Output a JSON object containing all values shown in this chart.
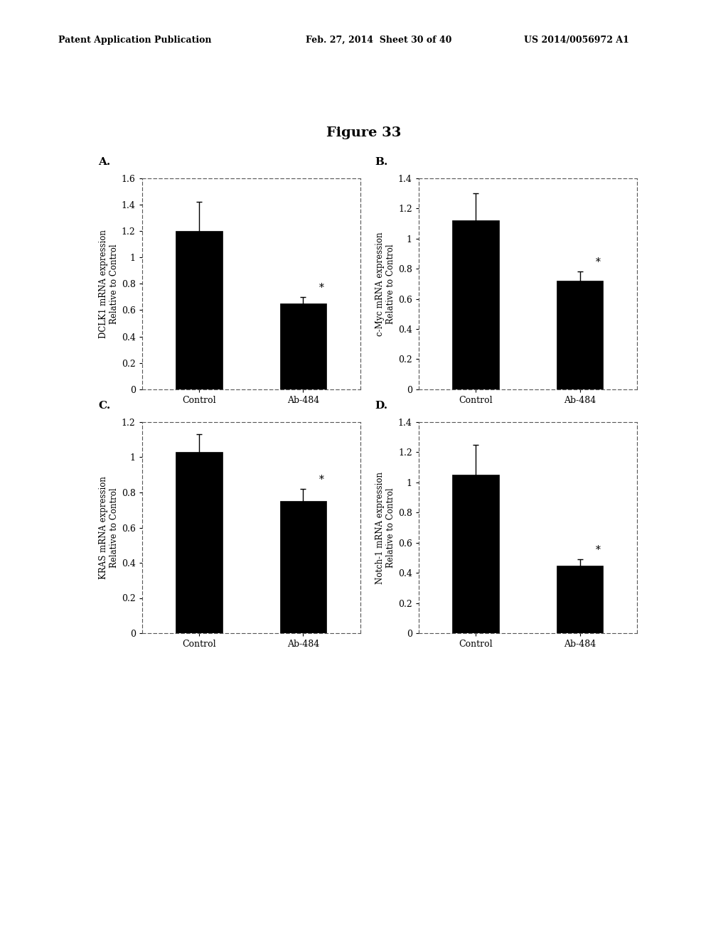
{
  "figure_title": "Figure 33",
  "header_left": "Patent Application Publication",
  "header_mid": "Feb. 27, 2014  Sheet 30 of 40",
  "header_right": "US 2014/0056972 A1",
  "panels": [
    {
      "label": "A.",
      "ylabel": "DCLK1 mRNA expression\nRelative to Control",
      "ylim": [
        0,
        1.6
      ],
      "yticks": [
        0,
        0.2,
        0.4,
        0.6,
        0.8,
        1.0,
        1.2,
        1.4,
        1.6
      ],
      "ytick_labels": [
        "0",
        "0.2",
        "0.4",
        "0.6",
        "0.8",
        "1",
        "1.2",
        "1.4",
        "1.6"
      ],
      "categories": [
        "Control",
        "Ab-484"
      ],
      "values": [
        1.2,
        0.65
      ],
      "errors": [
        0.22,
        0.05
      ],
      "sig_bar": [
        false,
        true
      ],
      "bar_color": "#000000"
    },
    {
      "label": "B.",
      "ylabel": "c-Myc mRNA expression\nRelative to Control",
      "ylim": [
        0,
        1.4
      ],
      "yticks": [
        0,
        0.2,
        0.4,
        0.6,
        0.8,
        1.0,
        1.2,
        1.4
      ],
      "ytick_labels": [
        "0",
        "0.2",
        "0.4",
        "0.6",
        "0.8",
        "1",
        "1.2",
        "1.4"
      ],
      "categories": [
        "Control",
        "Ab-484"
      ],
      "values": [
        1.12,
        0.72
      ],
      "errors": [
        0.18,
        0.06
      ],
      "sig_bar": [
        false,
        true
      ],
      "bar_color": "#000000"
    },
    {
      "label": "C.",
      "ylabel": "KRAS mRNA expression\nRelative to Control",
      "ylim": [
        0,
        1.2
      ],
      "yticks": [
        0,
        0.2,
        0.4,
        0.6,
        0.8,
        1.0,
        1.2
      ],
      "ytick_labels": [
        "0",
        "0.2",
        "0.4",
        "0.6",
        "0.8",
        "1",
        "1.2"
      ],
      "categories": [
        "Control",
        "Ab-484"
      ],
      "values": [
        1.03,
        0.75
      ],
      "errors": [
        0.1,
        0.07
      ],
      "sig_bar": [
        false,
        true
      ],
      "bar_color": "#000000"
    },
    {
      "label": "D.",
      "ylabel": "Notch-1 mRNA expression\nRelative to Control",
      "ylim": [
        0,
        1.4
      ],
      "yticks": [
        0,
        0.2,
        0.4,
        0.6,
        0.8,
        1.0,
        1.2,
        1.4
      ],
      "ytick_labels": [
        "0",
        "0.2",
        "0.4",
        "0.6",
        "0.8",
        "1",
        "1.2",
        "1.4"
      ],
      "categories": [
        "Control",
        "Ab-484"
      ],
      "values": [
        1.05,
        0.45
      ],
      "errors": [
        0.2,
        0.04
      ],
      "sig_bar": [
        false,
        true
      ],
      "bar_color": "#000000"
    }
  ],
  "background_color": "#ffffff",
  "bar_width": 0.45,
  "fontsize_ylabel": 8.5,
  "fontsize_tick": 9,
  "fontsize_panel_label": 11,
  "fontsize_title": 14,
  "fontsize_header": 9
}
